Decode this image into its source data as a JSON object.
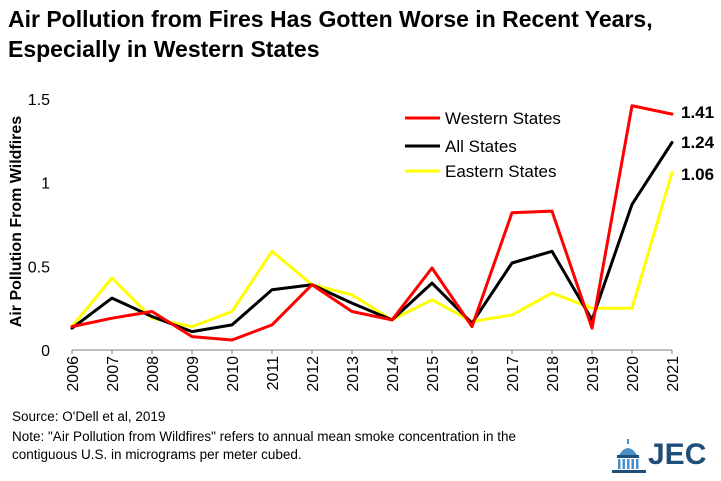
{
  "chart_data": {
    "type": "line",
    "title": [
      "Air Pollution from Fires Has Gotten Worse in Recent Years,",
      "Especially in Western States"
    ],
    "ylabel": "Air Pollution From Wildfires",
    "xlabel": "",
    "ylim": [
      0,
      1.5
    ],
    "yticks": [
      "0",
      "0.5",
      "1",
      "1.5"
    ],
    "ytick_values": [
      0,
      0.5,
      1,
      1.5
    ],
    "x": [
      "2006",
      "2007",
      "2008",
      "2009",
      "2010",
      "2011",
      "2012",
      "2013",
      "2014",
      "2015",
      "2016",
      "2017",
      "2018",
      "2019",
      "2020",
      "2021"
    ],
    "grid": false,
    "legend": "top-right",
    "series": [
      {
        "name": "Western States",
        "color": "#ff0000",
        "end_label": "1.41",
        "values": [
          0.14,
          0.19,
          0.23,
          0.08,
          0.06,
          0.15,
          0.39,
          0.23,
          0.18,
          0.49,
          0.14,
          0.82,
          0.83,
          0.13,
          1.46,
          1.41
        ]
      },
      {
        "name": "All States",
        "color": "#000000",
        "end_label": "1.24",
        "values": [
          0.13,
          0.31,
          0.2,
          0.11,
          0.15,
          0.36,
          0.39,
          0.28,
          0.18,
          0.4,
          0.16,
          0.52,
          0.59,
          0.18,
          0.87,
          1.24
        ]
      },
      {
        "name": "Eastern States",
        "color": "#ffff00",
        "end_label": "1.06",
        "values": [
          0.14,
          0.43,
          0.19,
          0.14,
          0.23,
          0.59,
          0.39,
          0.33,
          0.18,
          0.3,
          0.17,
          0.21,
          0.34,
          0.25,
          0.25,
          1.06
        ]
      }
    ]
  },
  "footer": {
    "source": "Source: O'Dell et al, 2019",
    "note_line1": "Note: \"Air Pollution from Wildfires\" refers to annual mean smoke concentration in the",
    "note_line2": "contiguous U.S. in micrograms per meter cubed."
  },
  "logo": {
    "text": "JEC",
    "color": "#1f4e79"
  }
}
